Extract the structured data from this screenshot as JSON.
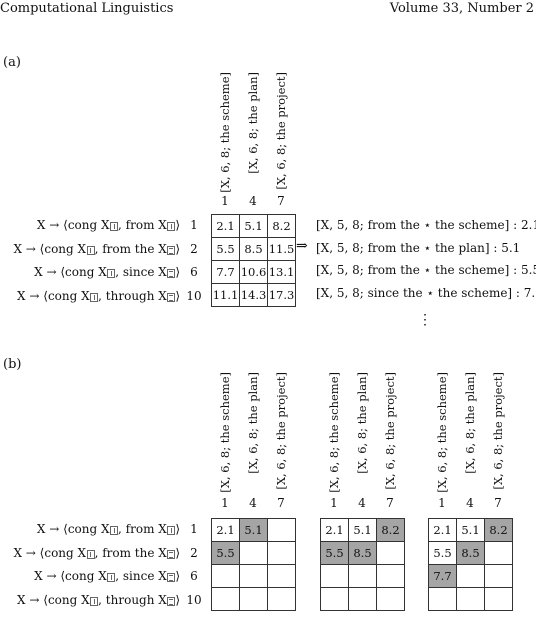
{
  "header": {
    "left": "Computational Linguistics",
    "right": "Volume 33, Number 2"
  },
  "panel_a": {
    "label": "(a)",
    "columns": [
      "[X, 6, 8; the scheme]",
      "[X, 6, 8; the plan]",
      "[X, 6, 8; the project]"
    ],
    "col_numbers": [
      "1",
      "4",
      "7"
    ],
    "rules": [
      {
        "pre": "X → ⟨cong X",
        "mid": ", from X",
        "post": "⟩",
        "num": "1"
      },
      {
        "pre": "X → ⟨cong X",
        "mid": ", from the X",
        "post": "⟩",
        "num": "2"
      },
      {
        "pre": "X → ⟨cong X",
        "mid": ", since X",
        "post": "⟩",
        "num": "6"
      },
      {
        "pre": "X → ⟨cong X",
        "mid": ", through X",
        "post": "⟩",
        "num": "10"
      }
    ],
    "grid": [
      [
        "2.1",
        "5.1",
        "8.2"
      ],
      [
        "5.5",
        "8.5",
        "11.5"
      ],
      [
        "7.7",
        "10.6",
        "13.1"
      ],
      [
        "11.1",
        "14.3",
        "17.3"
      ]
    ],
    "arrow": "⇒",
    "derivations": [
      "[X, 5, 8; from the ⋆ the scheme] : 2.1",
      "[X, 5, 8; from the ⋆ the plan] : 5.1",
      "[X, 5, 8; from the ⋆ the scheme] : 5.5",
      "[X, 5, 8; since the ⋆ the scheme] : 7.7"
    ],
    "vdots": "⋮"
  },
  "panel_b": {
    "label": "(b)",
    "grids": [
      [
        [
          "2.1",
          "5.1",
          ""
        ],
        [
          "5.5",
          "",
          ""
        ],
        [
          "",
          "",
          ""
        ],
        [
          "",
          "",
          ""
        ]
      ],
      [
        [
          "2.1",
          "5.1",
          "8.2"
        ],
        [
          "5.5",
          "8.5",
          ""
        ],
        [
          "",
          "",
          ""
        ],
        [
          "",
          "",
          ""
        ]
      ],
      [
        [
          "2.1",
          "5.1",
          "8.2"
        ],
        [
          "5.5",
          "8.5",
          ""
        ],
        [
          "7.7",
          "",
          ""
        ],
        [
          "",
          "",
          ""
        ]
      ]
    ],
    "highlight": [
      [
        [
          0,
          1
        ],
        [
          1,
          0
        ]
      ],
      [
        [
          0,
          2
        ],
        [
          1,
          0
        ],
        [
          1,
          1
        ]
      ],
      [
        [
          0,
          2
        ],
        [
          1,
          1
        ],
        [
          2,
          0
        ]
      ]
    ]
  }
}
